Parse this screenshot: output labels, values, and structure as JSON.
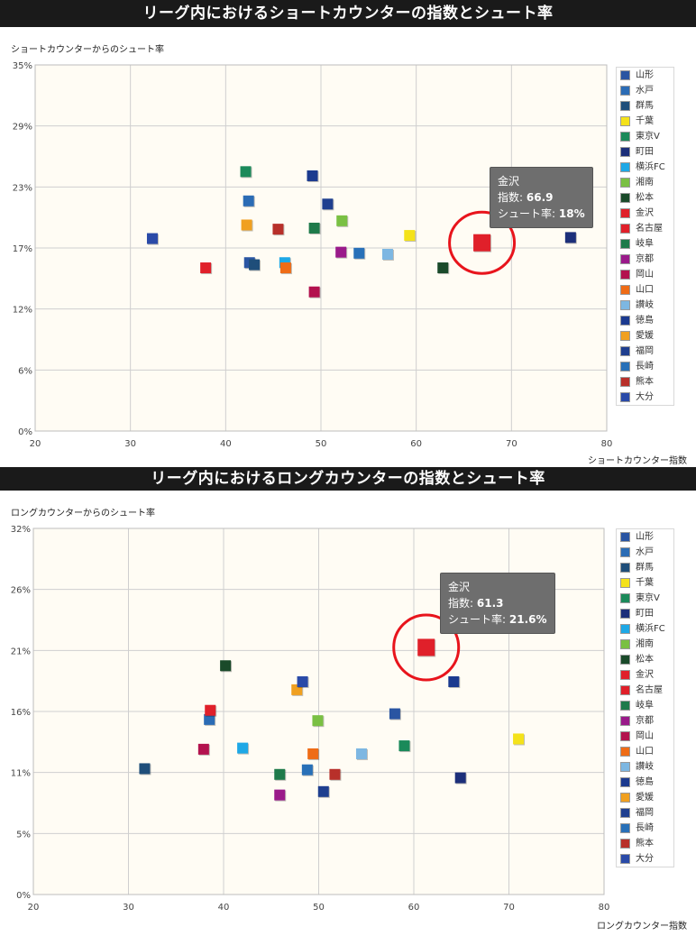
{
  "chart_data": [
    {
      "type": "scatter",
      "title": "リーグ内におけるショートカウンターの指数とシュート率",
      "xlabel": "ショートカウンター指数",
      "ylabel": "ショートカウンターからのシュート率",
      "xlim": [
        20,
        80
      ],
      "ylim": [
        0,
        35
      ],
      "xticks": [
        20,
        30,
        40,
        50,
        60,
        70,
        80
      ],
      "yticks": [
        0,
        6,
        12,
        17,
        23,
        29,
        35
      ],
      "ytick_labels": [
        "0%",
        "6%",
        "12%",
        "17%",
        "23%",
        "29%",
        "35%"
      ],
      "legend_position": "right",
      "grid": true,
      "highlight": "金沢",
      "tooltip": {
        "team": "金沢",
        "x_label": "指数",
        "x_value": "66.9",
        "y_label": "シュート率",
        "y_value": "18%"
      },
      "series": [
        {
          "name": "山形",
          "color": "#2a55a2",
          "x": 42.5,
          "y": 16.1
        },
        {
          "name": "水戸",
          "color": "#2b6cb5",
          "x": 42.4,
          "y": 22.0
        },
        {
          "name": "群馬",
          "color": "#1f4e7a",
          "x": 43.0,
          "y": 15.9
        },
        {
          "name": "千葉",
          "color": "#f4e21a",
          "x": 59.3,
          "y": 18.7
        },
        {
          "name": "東京V",
          "color": "#1b8a5a",
          "x": 42.1,
          "y": 24.8
        },
        {
          "name": "町田",
          "color": "#1c2f7a",
          "x": 76.2,
          "y": 18.5
        },
        {
          "name": "横浜FC",
          "color": "#1ea8e6",
          "x": 46.2,
          "y": 16.1
        },
        {
          "name": "湘南",
          "color": "#7ac043",
          "x": 52.2,
          "y": 20.1
        },
        {
          "name": "松本",
          "color": "#1a4a2a",
          "x": 62.8,
          "y": 15.6
        },
        {
          "name": "金沢",
          "color": "#e0202a",
          "x": 66.9,
          "y": 18.0
        },
        {
          "name": "名古屋",
          "color": "#e0202a",
          "x": 37.9,
          "y": 15.6
        },
        {
          "name": "岐阜",
          "color": "#1e7a4a",
          "x": 49.3,
          "y": 19.4
        },
        {
          "name": "京都",
          "color": "#9a1a8a",
          "x": 52.1,
          "y": 17.1
        },
        {
          "name": "岡山",
          "color": "#b3124e",
          "x": 49.3,
          "y": 13.3
        },
        {
          "name": "山口",
          "color": "#ef6c16",
          "x": 46.3,
          "y": 15.6
        },
        {
          "name": "讃岐",
          "color": "#7db7e2",
          "x": 57.0,
          "y": 16.9
        },
        {
          "name": "徳島",
          "color": "#1b3a8f",
          "x": 49.1,
          "y": 24.4
        },
        {
          "name": "愛媛",
          "color": "#f0a020",
          "x": 42.2,
          "y": 19.7
        },
        {
          "name": "福岡",
          "color": "#1f3f8f",
          "x": 50.7,
          "y": 21.7
        },
        {
          "name": "長崎",
          "color": "#2870b8",
          "x": 54.0,
          "y": 17.0
        },
        {
          "name": "熊本",
          "color": "#b8302a",
          "x": 45.5,
          "y": 19.3
        },
        {
          "name": "大分",
          "color": "#2a4aa8",
          "x": 32.3,
          "y": 18.4
        }
      ]
    },
    {
      "type": "scatter",
      "title": "リーグ内におけるロングカウンターの指数とシュート率",
      "xlabel": "ロングカウンター指数",
      "ylabel": "ロングカウンターからのシュート率",
      "xlim": [
        20,
        80
      ],
      "ylim": [
        0,
        32
      ],
      "xticks": [
        20,
        30,
        40,
        50,
        60,
        70,
        80
      ],
      "yticks": [
        0,
        5,
        11,
        16,
        21,
        26,
        32
      ],
      "ytick_labels": [
        "0%",
        "5%",
        "11%",
        "16%",
        "21%",
        "26%",
        "32%"
      ],
      "legend_position": "right",
      "grid": true,
      "highlight": "金沢",
      "tooltip": {
        "team": "金沢",
        "x_label": "指数",
        "x_value": "61.3",
        "y_label": "シュート率",
        "y_value": "21.6%"
      },
      "series": [
        {
          "name": "山形",
          "color": "#2a55a2",
          "x": 58.0,
          "y": 15.8
        },
        {
          "name": "水戸",
          "color": "#2b6cb5",
          "x": 38.5,
          "y": 15.3
        },
        {
          "name": "群馬",
          "color": "#1f4e7a",
          "x": 31.7,
          "y": 11.0
        },
        {
          "name": "千葉",
          "color": "#f4e21a",
          "x": 71.0,
          "y": 13.6
        },
        {
          "name": "東京V",
          "color": "#1b8a5a",
          "x": 59.0,
          "y": 13.0
        },
        {
          "name": "町田",
          "color": "#1c2f7a",
          "x": 64.9,
          "y": 10.2
        },
        {
          "name": "横浜FC",
          "color": "#1ea8e6",
          "x": 42.0,
          "y": 12.8
        },
        {
          "name": "湘南",
          "color": "#7ac043",
          "x": 49.9,
          "y": 15.2
        },
        {
          "name": "松本",
          "color": "#1a4a2a",
          "x": 40.2,
          "y": 20.0
        },
        {
          "name": "金沢",
          "color": "#e0202a",
          "x": 61.3,
          "y": 21.6
        },
        {
          "name": "名古屋",
          "color": "#e0202a",
          "x": 38.6,
          "y": 16.1
        },
        {
          "name": "岐阜",
          "color": "#1e7a4a",
          "x": 45.9,
          "y": 10.5
        },
        {
          "name": "京都",
          "color": "#9a1a8a",
          "x": 45.9,
          "y": 8.7
        },
        {
          "name": "岡山",
          "color": "#b3124e",
          "x": 37.9,
          "y": 12.7
        },
        {
          "name": "山口",
          "color": "#ef6c16",
          "x": 49.4,
          "y": 12.3
        },
        {
          "name": "讃岐",
          "color": "#7db7e2",
          "x": 54.5,
          "y": 12.3
        },
        {
          "name": "徳島",
          "color": "#1b3a8f",
          "x": 64.2,
          "y": 18.6
        },
        {
          "name": "愛媛",
          "color": "#f0a020",
          "x": 47.7,
          "y": 17.9
        },
        {
          "name": "福岡",
          "color": "#1f3f8f",
          "x": 50.5,
          "y": 9.0
        },
        {
          "name": "長崎",
          "color": "#2870b8",
          "x": 48.8,
          "y": 10.9
        },
        {
          "name": "熊本",
          "color": "#b8302a",
          "x": 51.7,
          "y": 10.5
        },
        {
          "name": "大分",
          "color": "#2a4aa8",
          "x": 48.3,
          "y": 18.6
        }
      ]
    }
  ]
}
